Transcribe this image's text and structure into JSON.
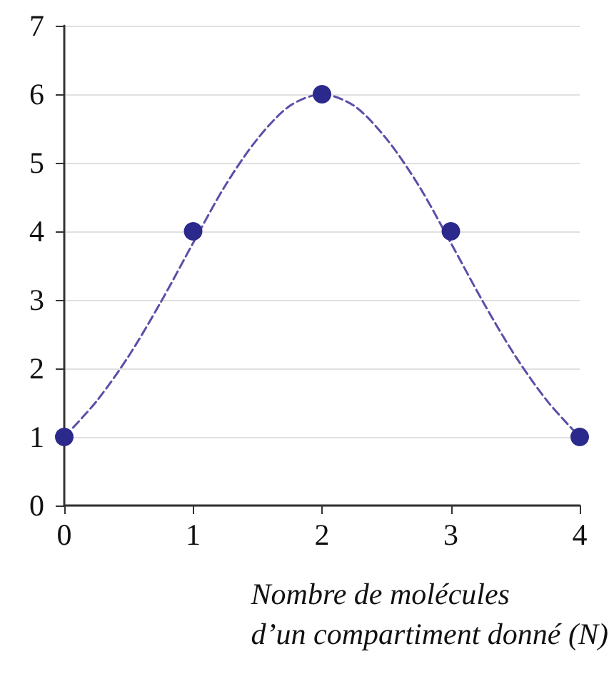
{
  "chart_data": {
    "type": "scatter",
    "xlabel": "Nombre de molécules\nd’un compartiment donné (N)",
    "series": [
      {
        "color": "#2b2a8c",
        "x": [
          0,
          1,
          2,
          3,
          4
        ],
        "values": [
          1,
          4,
          6,
          4,
          1
        ],
        "marker": "circle"
      },
      {
        "type": "line",
        "color": "#5b4fa8",
        "line_style": "dashed",
        "marker": "none",
        "x": [
          0,
          0.25,
          0.5,
          0.75,
          1,
          1.25,
          1.5,
          1.75,
          2,
          2.25,
          2.5,
          2.75,
          3,
          3.25,
          3.5,
          3.75,
          4
        ],
        "values": [
          1,
          1.52,
          2.18,
          2.97,
          3.83,
          4.67,
          5.35,
          5.83,
          6,
          5.83,
          5.35,
          4.67,
          3.83,
          2.97,
          2.18,
          1.52,
          1
        ]
      }
    ],
    "xlim": [
      0,
      4
    ],
    "xticks": [
      0,
      1,
      2,
      3,
      4
    ],
    "ylim": [
      0,
      7
    ],
    "yticks": [
      0,
      1,
      2,
      3,
      4,
      5,
      6,
      7
    ],
    "grid": "y"
  }
}
